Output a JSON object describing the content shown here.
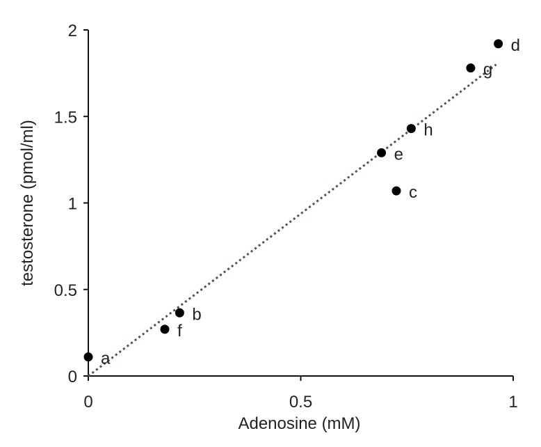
{
  "chart_data": {
    "type": "scatter",
    "xlabel": "Adenosine (mM)",
    "ylabel": "testosterone (pmol/ml)",
    "xlim": [
      0,
      1
    ],
    "ylim": [
      0,
      2
    ],
    "x_ticks": [
      "0",
      "0.5",
      "1"
    ],
    "y_ticks": [
      "0",
      "0.5",
      "1",
      "1.5",
      "2"
    ],
    "grid": false,
    "points": [
      {
        "label": "a",
        "x": 0.0,
        "y": 0.11
      },
      {
        "label": "f",
        "x": 0.18,
        "y": 0.27
      },
      {
        "label": "b",
        "x": 0.215,
        "y": 0.365
      },
      {
        "label": "e",
        "x": 0.69,
        "y": 1.29
      },
      {
        "label": "c",
        "x": 0.725,
        "y": 1.07
      },
      {
        "label": "h",
        "x": 0.76,
        "y": 1.43
      },
      {
        "label": "g",
        "x": 0.9,
        "y": 1.78
      },
      {
        "label": "d",
        "x": 0.965,
        "y": 1.92
      }
    ],
    "trendline": {
      "style": "dotted",
      "color": "#44546a",
      "x": [
        0.0,
        0.96
      ],
      "y": [
        0.0,
        1.8
      ]
    },
    "marker_color": "#000000"
  }
}
